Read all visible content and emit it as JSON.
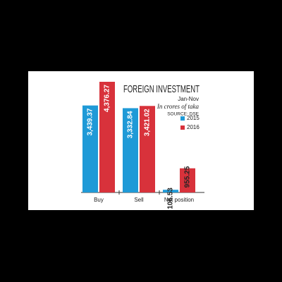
{
  "chart_data": {
    "type": "bar",
    "title": "FOREIGN INVESTMENT",
    "subtitle": "Jan-Nov",
    "unit": "In crores of taka",
    "source": "SOURCE: DSE",
    "categories": [
      "Buy",
      "Sell",
      "Net position"
    ],
    "series": [
      {
        "name": "2015",
        "color": "#1f9ad7",
        "values": [
          3439.37,
          3332.84,
          106.53
        ],
        "value_labels": [
          "3,439.37",
          "3,332.84",
          "106.53"
        ]
      },
      {
        "name": "2016",
        "color": "#d8323b",
        "values": [
          4376.27,
          3421.02,
          955.25
        ],
        "value_labels": [
          "4,376.27",
          "3,421.02",
          "955.25"
        ]
      }
    ]
  }
}
